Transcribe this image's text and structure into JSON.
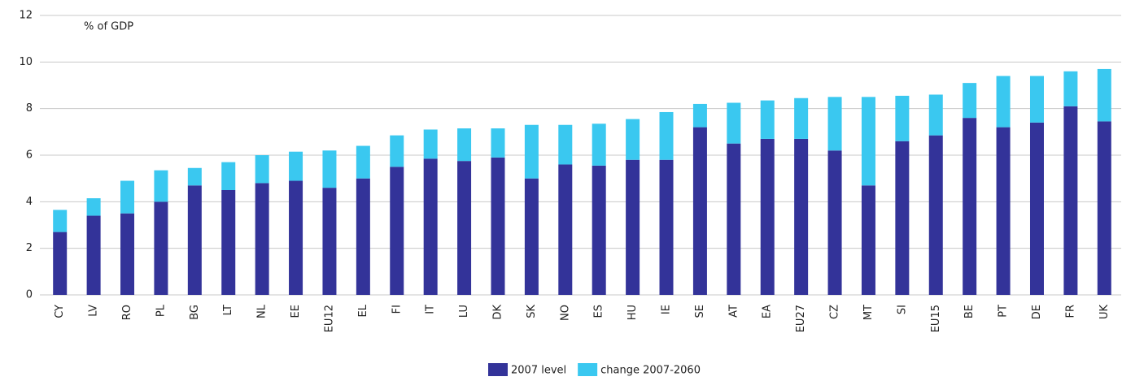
{
  "chart_data": {
    "type": "stacked_bar",
    "annotation": "% of GDP",
    "categories": [
      "CY",
      "LV",
      "RO",
      "PL",
      "BG",
      "LT",
      "NL",
      "EE",
      "EU12",
      "EL",
      "FI",
      "IT",
      "LU",
      "DK",
      "SK",
      "NO",
      "ES",
      "HU",
      "IE",
      "SE",
      "AT",
      "EA",
      "EU27",
      "CZ",
      "MT",
      "SI",
      "EU15",
      "BE",
      "PT",
      "DE",
      "FR",
      "UK"
    ],
    "series": [
      {
        "name": "2007 level",
        "color": "#333399",
        "values": [
          2.7,
          3.4,
          3.5,
          4.0,
          4.7,
          4.5,
          4.8,
          4.9,
          4.6,
          5.0,
          5.5,
          5.85,
          5.75,
          5.9,
          5.0,
          5.6,
          5.55,
          5.8,
          5.8,
          7.2,
          6.5,
          6.7,
          6.7,
          6.2,
          4.7,
          6.6,
          6.85,
          7.6,
          7.2,
          7.4,
          8.1,
          7.45
        ]
      },
      {
        "name": "change 2007-2060",
        "color": "#3ac8f0",
        "values": [
          0.95,
          0.75,
          1.4,
          1.35,
          0.75,
          1.2,
          1.2,
          1.25,
          1.6,
          1.4,
          1.35,
          1.25,
          1.4,
          1.25,
          2.3,
          1.7,
          1.8,
          1.75,
          2.05,
          1.0,
          1.75,
          1.65,
          1.75,
          2.3,
          3.8,
          1.95,
          1.75,
          1.5,
          2.2,
          2.0,
          1.5,
          2.25
        ]
      }
    ],
    "ylim": [
      0,
      12
    ],
    "yticks": [
      0,
      2,
      4,
      6,
      8,
      10,
      12
    ],
    "grid": true,
    "legend": "bottom"
  }
}
